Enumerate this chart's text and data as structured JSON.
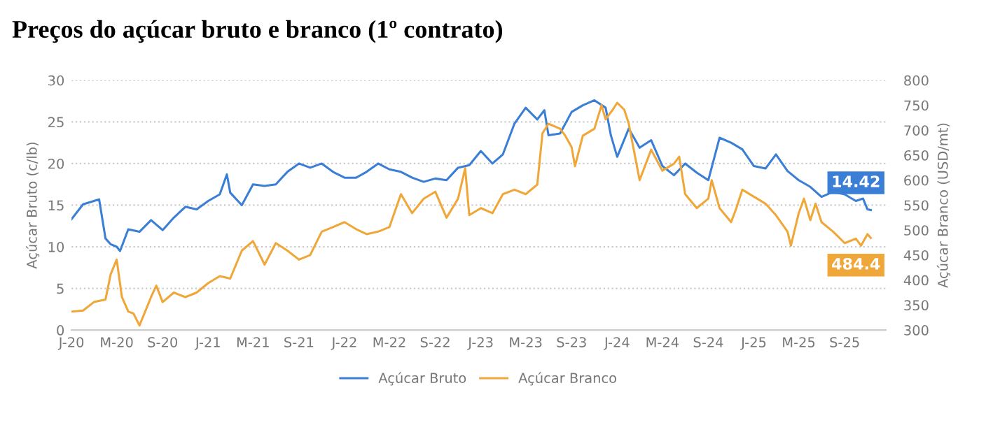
{
  "chart_data": {
    "type": "line",
    "title": "Preços do açúcar bruto e branco (1º contrato)",
    "ylabel": "Açúcar Bruto (c/lb)",
    "y2label": "Açúcar Branco (USD/mt)",
    "xlim": [
      "2020-01-01",
      "2025-12-20"
    ],
    "xticks": [
      {
        "value": "2020-01-01",
        "label": "J-20"
      },
      {
        "value": "2020-05-01",
        "label": "M-20"
      },
      {
        "value": "2020-09-01",
        "label": "S-20"
      },
      {
        "value": "2021-01-01",
        "label": "J-21"
      },
      {
        "value": "2021-05-01",
        "label": "M-21"
      },
      {
        "value": "2021-09-01",
        "label": "S-21"
      },
      {
        "value": "2022-01-01",
        "label": "J-22"
      },
      {
        "value": "2022-05-01",
        "label": "M-22"
      },
      {
        "value": "2022-09-01",
        "label": "S-22"
      },
      {
        "value": "2023-01-01",
        "label": "J-23"
      },
      {
        "value": "2023-05-01",
        "label": "M-23"
      },
      {
        "value": "2023-09-01",
        "label": "S-23"
      },
      {
        "value": "2024-01-01",
        "label": "J-24"
      },
      {
        "value": "2024-05-01",
        "label": "M-24"
      },
      {
        "value": "2024-09-01",
        "label": "S-24"
      },
      {
        "value": "2025-01-01",
        "label": "J-25"
      },
      {
        "value": "2025-05-01",
        "label": "M-25"
      },
      {
        "value": "2025-09-01",
        "label": "S-25"
      }
    ],
    "ylim": [
      0,
      30
    ],
    "yticks": [
      0,
      5,
      10,
      15,
      20,
      25,
      30
    ],
    "y2lim": [
      300,
      800
    ],
    "y2ticks": [
      300,
      350,
      400,
      450,
      500,
      550,
      600,
      650,
      700,
      750,
      800
    ],
    "grid": "y",
    "legend": "bottom",
    "marker": "none",
    "line_style": "solid",
    "series": [
      {
        "name": "Açúcar Bruto",
        "color": "#3a7fd5",
        "x": [
          "2020-01-01",
          "2020-02-01",
          "2020-03-01",
          "2020-03-15",
          "2020-04-01",
          "2020-04-15",
          "2020-05-01",
          "2020-05-10",
          "2020-06-01",
          "2020-07-01",
          "2020-08-01",
          "2020-09-01",
          "2020-10-01",
          "2020-11-01",
          "2020-12-01",
          "2021-01-01",
          "2021-02-01",
          "2021-02-20",
          "2021-03-01",
          "2021-04-01",
          "2021-05-01",
          "2021-06-01",
          "2021-07-01",
          "2021-08-01",
          "2021-09-01",
          "2021-10-01",
          "2021-11-01",
          "2021-12-01",
          "2022-01-01",
          "2022-02-01",
          "2022-03-01",
          "2022-04-01",
          "2022-05-01",
          "2022-06-01",
          "2022-07-01",
          "2022-08-01",
          "2022-09-01",
          "2022-10-01",
          "2022-11-01",
          "2022-12-01",
          "2023-01-01",
          "2023-02-01",
          "2023-03-01",
          "2023-04-01",
          "2023-05-01",
          "2023-06-01",
          "2023-06-20",
          "2023-07-01",
          "2023-08-01",
          "2023-09-01",
          "2023-10-01",
          "2023-11-01",
          "2023-12-01",
          "2023-12-15",
          "2024-01-01",
          "2024-02-01",
          "2024-03-01",
          "2024-04-01",
          "2024-05-01",
          "2024-06-01",
          "2024-07-01",
          "2024-08-01",
          "2024-09-01",
          "2024-10-01",
          "2024-11-01",
          "2024-12-01",
          "2025-01-01",
          "2025-02-01",
          "2025-03-01",
          "2025-04-01",
          "2025-05-01",
          "2025-06-01",
          "2025-07-01",
          "2025-08-01",
          "2025-09-01",
          "2025-10-01",
          "2025-10-20",
          "2025-11-01",
          "2025-11-10"
        ],
        "values": [
          13.3,
          15.1,
          15.5,
          15.7,
          11.0,
          10.3,
          10.0,
          9.5,
          12.1,
          11.8,
          13.2,
          12.0,
          13.5,
          14.8,
          14.5,
          15.5,
          16.3,
          18.7,
          16.5,
          15.0,
          17.5,
          17.3,
          17.5,
          19.0,
          20.0,
          19.5,
          20.0,
          19.0,
          18.3,
          18.3,
          19.0,
          20.0,
          19.3,
          19.0,
          18.3,
          17.8,
          18.2,
          18.0,
          19.5,
          19.8,
          21.5,
          20.0,
          21.1,
          24.8,
          26.7,
          25.3,
          26.4,
          23.4,
          23.6,
          26.2,
          27.0,
          27.6,
          26.7,
          23.4,
          20.8,
          24.2,
          21.9,
          22.8,
          19.7,
          18.6,
          20.0,
          18.9,
          18.0,
          23.1,
          22.5,
          21.7,
          19.7,
          19.4,
          21.1,
          19.1,
          18.0,
          17.2,
          16.0,
          16.6,
          16.3,
          15.5,
          15.8,
          14.5,
          14.42
        ],
        "value_labels": [
          null,
          null,
          null,
          null,
          null,
          null,
          null,
          null,
          null,
          null,
          null,
          null,
          null,
          null,
          null,
          null,
          null,
          null,
          null,
          null,
          null,
          null,
          null,
          null,
          null,
          null,
          null,
          null,
          null,
          null,
          null,
          null,
          null,
          null,
          null,
          null,
          null,
          null,
          null,
          null,
          null,
          null,
          null,
          null,
          null,
          null,
          null,
          null,
          null,
          null,
          null,
          null,
          null,
          null,
          null,
          null,
          null,
          null,
          null,
          null,
          null,
          null,
          null,
          null,
          null,
          null,
          null,
          null,
          null,
          null,
          null,
          null,
          null,
          null,
          null,
          null,
          null,
          null,
          "14.42"
        ]
      },
      {
        "name": "Açúcar Branco",
        "color": "#f0a73a",
        "axis": "y2",
        "x": [
          "2020-01-01",
          "2020-02-01",
          "2020-03-01",
          "2020-04-01",
          "2020-04-15",
          "2020-05-01",
          "2020-05-15",
          "2020-06-01",
          "2020-06-15",
          "2020-07-01",
          "2020-08-01",
          "2020-08-15",
          "2020-09-01",
          "2020-10-01",
          "2020-11-01",
          "2020-12-01",
          "2021-01-01",
          "2021-02-01",
          "2021-03-01",
          "2021-04-01",
          "2021-05-01",
          "2021-06-01",
          "2021-07-01",
          "2021-08-01",
          "2021-09-01",
          "2021-10-01",
          "2021-11-01",
          "2021-12-01",
          "2022-01-01",
          "2022-02-01",
          "2022-03-01",
          "2022-04-01",
          "2022-05-01",
          "2022-06-01",
          "2022-07-01",
          "2022-08-01",
          "2022-09-01",
          "2022-10-01",
          "2022-11-01",
          "2022-11-20",
          "2022-12-01",
          "2023-01-01",
          "2023-02-01",
          "2023-03-01",
          "2023-04-01",
          "2023-05-01",
          "2023-06-01",
          "2023-06-15",
          "2023-07-01",
          "2023-08-01",
          "2023-08-15",
          "2023-09-01",
          "2023-09-10",
          "2023-10-01",
          "2023-11-01",
          "2023-11-20",
          "2023-12-01",
          "2023-12-20",
          "2024-01-01",
          "2024-01-20",
          "2024-02-01",
          "2024-03-01",
          "2024-04-01",
          "2024-05-01",
          "2024-06-01",
          "2024-06-15",
          "2024-07-01",
          "2024-08-01",
          "2024-09-01",
          "2024-09-10",
          "2024-10-01",
          "2024-11-01",
          "2024-11-15",
          "2024-12-01",
          "2025-01-01",
          "2025-02-01",
          "2025-03-01",
          "2025-04-01",
          "2025-04-10",
          "2025-05-01",
          "2025-05-15",
          "2025-06-01",
          "2025-06-15",
          "2025-07-01",
          "2025-08-01",
          "2025-09-01",
          "2025-10-01",
          "2025-10-15",
          "2025-11-01",
          "2025-11-10"
        ],
        "values": [
          337,
          339,
          356,
          361,
          412,
          441,
          366,
          337,
          333,
          309,
          366,
          389,
          356,
          375,
          366,
          375,
          394,
          408,
          403,
          459,
          478,
          431,
          474,
          459,
          441,
          450,
          497,
          506,
          516,
          502,
          492,
          497,
          506,
          572,
          534,
          563,
          577,
          525,
          563,
          624,
          530,
          544,
          534,
          572,
          581,
          572,
          591,
          694,
          713,
          703,
          689,
          666,
          628,
          689,
          703,
          750,
          722,
          741,
          755,
          741,
          713,
          600,
          661,
          619,
          633,
          647,
          572,
          544,
          563,
          600,
          544,
          516,
          544,
          581,
          567,
          553,
          530,
          497,
          469,
          534,
          563,
          520,
          553,
          516,
          497,
          474,
          483,
          469,
          492,
          484.4
        ],
        "value_labels": [
          null,
          null,
          null,
          null,
          null,
          null,
          null,
          null,
          null,
          null,
          null,
          null,
          null,
          null,
          null,
          null,
          null,
          null,
          null,
          null,
          null,
          null,
          null,
          null,
          null,
          null,
          null,
          null,
          null,
          null,
          null,
          null,
          null,
          null,
          null,
          null,
          null,
          null,
          null,
          null,
          null,
          null,
          null,
          null,
          null,
          null,
          null,
          null,
          null,
          null,
          null,
          null,
          null,
          null,
          null,
          null,
          null,
          null,
          null,
          null,
          null,
          null,
          null,
          null,
          null,
          null,
          null,
          null,
          null,
          null,
          null,
          null,
          null,
          null,
          null,
          null,
          null,
          null,
          null,
          null,
          null,
          null,
          null,
          null,
          null,
          null,
          null,
          null,
          null,
          "484.4"
        ]
      }
    ]
  }
}
